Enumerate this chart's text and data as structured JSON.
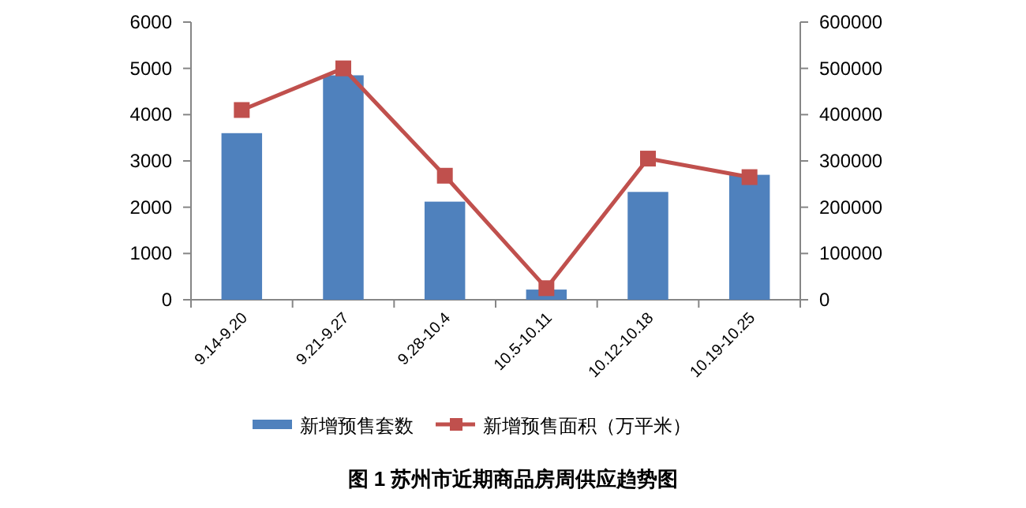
{
  "chart_data": {
    "type": "bar",
    "title": "图 1  苏州市近期商品房周供应趋势图",
    "categories": [
      "9.14-9.20",
      "9.21-9.27",
      "9.28-10.4",
      "10.5-10.11",
      "10.12-10.18",
      "10.19-10.25"
    ],
    "series": [
      {
        "name": "新增预售套数",
        "color": "#4f81bd",
        "values": [
          3600,
          4850,
          2120,
          220,
          2330,
          2700
        ]
      },
      {
        "name": "新增预售面积（万平米）",
        "type": "line",
        "axis": "y2",
        "color": "#c0504d",
        "marker": "square",
        "values": [
          410000,
          500000,
          268000,
          25000,
          305000,
          265000
        ]
      }
    ],
    "ylim": [
      0,
      6000
    ],
    "yticks": [
      0,
      1000,
      2000,
      3000,
      4000,
      5000,
      6000
    ],
    "y2lim": [
      0,
      600000
    ],
    "y2ticks": [
      0,
      100000,
      200000,
      300000,
      400000,
      500000,
      600000
    ],
    "legend": "bottom",
    "grid": false
  }
}
